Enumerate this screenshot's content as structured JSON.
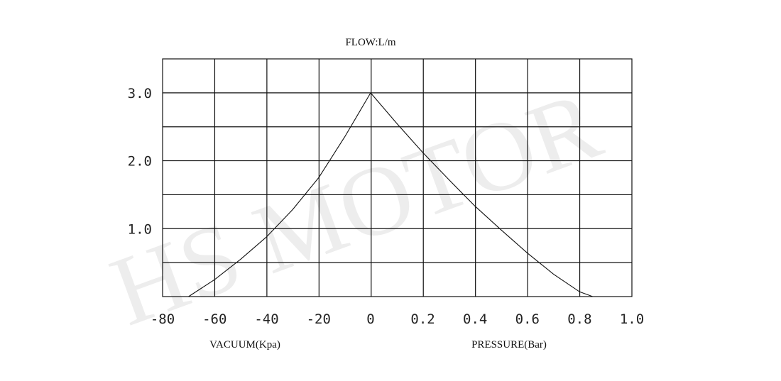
{
  "chart_data": {
    "type": "line",
    "title": "FLOW:L/m",
    "watermark": "HS MOTOR",
    "y_ticks": [
      "3.0",
      "2.0",
      "1.0"
    ],
    "y_tick_values": [
      3.0,
      2.0,
      1.0
    ],
    "ylim": [
      0,
      3.5
    ],
    "vacuum": {
      "xlabel": "VACUUM(Kpa)",
      "ticks": [
        "-80",
        "-60",
        "-40",
        "-20",
        "0"
      ],
      "tick_values": [
        -80,
        -60,
        -40,
        -20,
        0
      ],
      "xlim": [
        -80,
        0
      ],
      "x": [
        -70,
        -60,
        -50,
        -40,
        -30,
        -20,
        -10,
        0
      ],
      "y": [
        0.0,
        0.25,
        0.55,
        0.88,
        1.28,
        1.75,
        2.35,
        3.0
      ]
    },
    "pressure": {
      "xlabel": "PRESSURE(Bar)",
      "ticks": [
        "0.2",
        "0.4",
        "0.6",
        "0.8",
        "1.0"
      ],
      "tick_values": [
        0.2,
        0.4,
        0.6,
        0.8,
        1.0
      ],
      "xlim": [
        0,
        1.0
      ],
      "x": [
        0,
        0.1,
        0.2,
        0.3,
        0.4,
        0.5,
        0.6,
        0.7,
        0.8,
        0.85,
        0.9
      ],
      "y": [
        3.0,
        2.55,
        2.12,
        1.72,
        1.33,
        0.98,
        0.64,
        0.33,
        0.07,
        0.0,
        0.0
      ]
    },
    "grid": true
  }
}
